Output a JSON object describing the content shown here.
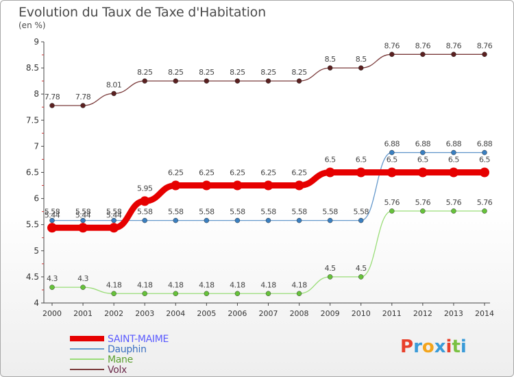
{
  "title": "Evolution du Taux de Taxe d'Habitation",
  "subtitle": "(en %)",
  "logo": {
    "text": "Proxiti",
    "colors": [
      "#e8402a",
      "#3a9bd8",
      "#f3a51c",
      "#3a9bd8",
      "#e8402a",
      "#7ac142",
      "#3a9bd8"
    ]
  },
  "chart_data": {
    "type": "line",
    "x": [
      2000,
      2001,
      2002,
      2003,
      2004,
      2005,
      2006,
      2007,
      2008,
      2009,
      2010,
      2011,
      2012,
      2013,
      2014
    ],
    "ylim": [
      4,
      9
    ],
    "yticks": [
      4,
      4.5,
      5,
      5.5,
      6,
      6.5,
      7,
      7.5,
      8,
      8.5,
      9
    ],
    "grid": false,
    "legend_position": "bottom-left",
    "series": [
      {
        "name": "SAINT-MAIME",
        "color": "#e60000",
        "marker": "#e60000",
        "labelText": "#444444",
        "legendText": "#5a5aff",
        "width": 9,
        "markerR": 7,
        "values": [
          5.44,
          5.44,
          5.44,
          5.95,
          6.25,
          6.25,
          6.25,
          6.25,
          6.25,
          6.5,
          6.5,
          6.5,
          6.5,
          6.5,
          6.5
        ],
        "labels": [
          "5.44",
          "5.44",
          "5.44",
          "5.95",
          "6.25",
          "6.25",
          "6.25",
          "6.25",
          "6.25",
          "6.5",
          "6.5",
          "6.5",
          "6.5",
          "6.5",
          "6.5"
        ]
      },
      {
        "name": "Dauphin",
        "color": "#6699cc",
        "marker": "#3a7fc0",
        "labelText": "#444444",
        "legendText": "#3a6fc0",
        "width": 1.3,
        "markerR": 3.5,
        "values": [
          5.58,
          5.58,
          5.58,
          5.58,
          5.58,
          5.58,
          5.58,
          5.58,
          5.58,
          5.58,
          5.58,
          6.88,
          6.88,
          6.88,
          6.88
        ],
        "labels": [
          "5.58",
          "5.58",
          "5.58",
          "5.58",
          "5.58",
          "5.58",
          "5.58",
          "5.58",
          "5.58",
          "5.58",
          "5.58",
          "6.88",
          "6.88",
          "6.88",
          "6.88"
        ]
      },
      {
        "name": "Mane",
        "color": "#99dd77",
        "marker": "#66c23a",
        "labelText": "#444444",
        "legendText": "#5a9f2e",
        "width": 1.3,
        "markerR": 3.5,
        "values": [
          4.3,
          4.3,
          4.18,
          4.18,
          4.18,
          4.18,
          4.18,
          4.18,
          4.18,
          4.5,
          4.5,
          5.76,
          5.76,
          5.76,
          5.76
        ],
        "labels": [
          "4.3",
          "4.3",
          "4.18",
          "4.18",
          "4.18",
          "4.18",
          "4.18",
          "4.18",
          "4.18",
          "4.5",
          "4.5",
          "5.76",
          "5.76",
          "5.76",
          "5.76"
        ]
      },
      {
        "name": "Volx",
        "color": "#7a3a3a",
        "marker": "#5a2020",
        "labelText": "#444444",
        "legendText": "#6a2a4a",
        "width": 1.3,
        "markerR": 3.5,
        "values": [
          7.78,
          7.78,
          8.01,
          8.25,
          8.25,
          8.25,
          8.25,
          8.25,
          8.25,
          8.5,
          8.5,
          8.76,
          8.76,
          8.76,
          8.76
        ],
        "labels": [
          "7.78",
          "7.78",
          "8.01",
          "8.25",
          "8.25",
          "8.25",
          "8.25",
          "8.25",
          "8.25",
          "8.5",
          "8.5",
          "8.76",
          "8.76",
          "8.76",
          "8.76"
        ]
      }
    ]
  }
}
